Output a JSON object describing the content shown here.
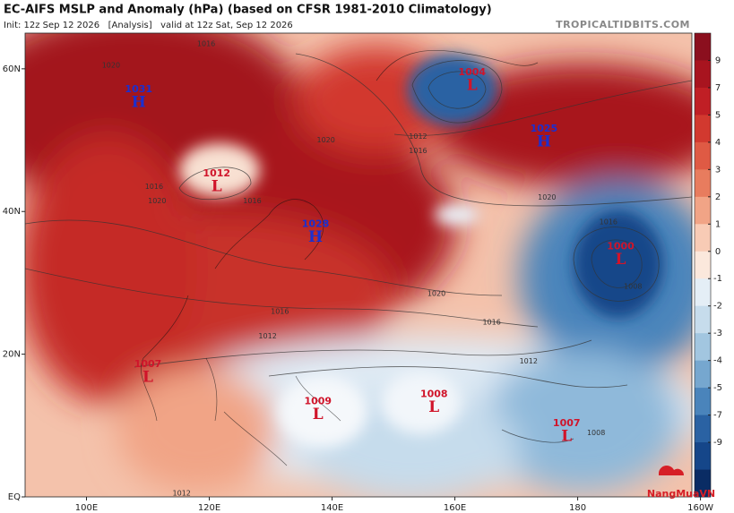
{
  "header": {
    "title": "EC-AIFS MSLP and Anomaly (hPa) (based on CFSR 1981-2010 Climatology)",
    "init": "Init: 12z Sep 12 2026   [Analysis]   valid at 12z Sat, Sep 12 2026",
    "source": "TROPICALTIDBITS.COM"
  },
  "axes": {
    "lon_labels": [
      {
        "value": 100,
        "label": "100E"
      },
      {
        "value": 120,
        "label": "120E"
      },
      {
        "value": 140,
        "label": "140E"
      },
      {
        "value": 160,
        "label": "160E"
      },
      {
        "value": 180,
        "label": "180"
      },
      {
        "value": 200,
        "label": "160W"
      }
    ],
    "lat_labels": [
      {
        "value": 0,
        "label": "EQ"
      },
      {
        "value": 20,
        "label": "20N"
      },
      {
        "value": 40,
        "label": "40N"
      },
      {
        "value": 60,
        "label": "60N"
      }
    ]
  },
  "colorbar": {
    "ticks": [
      9,
      7,
      5,
      4,
      3,
      2,
      1,
      0,
      -1,
      -2,
      -3,
      -4,
      -5,
      -7,
      -9
    ],
    "colors": [
      "#8b0f1e",
      "#a8141f",
      "#c01f25",
      "#d2392f",
      "#df5a44",
      "#e87c5e",
      "#f1a486",
      "#f8cbb5",
      "#fbe8dc",
      "#e4eef6",
      "#c6dcec",
      "#a2c6e0",
      "#76a7cf",
      "#4a84bb",
      "#2a62a3",
      "#154689",
      "#0a2c64"
    ]
  },
  "centers": [
    {
      "type": "H",
      "pressure": "1031",
      "lon": 108.5,
      "lat": 55.2
    },
    {
      "type": "L",
      "pressure": "1012",
      "lon": 121.2,
      "lat": 43.4
    },
    {
      "type": "H",
      "pressure": "1028",
      "lon": 137.3,
      "lat": 36.3
    },
    {
      "type": "L",
      "pressure": "1004",
      "lon": 162.8,
      "lat": 57.6
    },
    {
      "type": "H",
      "pressure": "1025",
      "lon": 174.5,
      "lat": 49.7
    },
    {
      "type": "L",
      "pressure": "1000",
      "lon": 187.0,
      "lat": 33.2
    },
    {
      "type": "L",
      "pressure": "1007",
      "lon": 110.0,
      "lat": 16.7
    },
    {
      "type": "L",
      "pressure": "1009",
      "lon": 137.7,
      "lat": 11.5
    },
    {
      "type": "L",
      "pressure": "1008",
      "lon": 156.6,
      "lat": 12.5
    },
    {
      "type": "L",
      "pressure": "1007",
      "lon": 178.2,
      "lat": 8.4
    }
  ],
  "contour_labels": [
    {
      "text": "1016",
      "lon": 119.5,
      "lat": 63.5
    },
    {
      "text": "1020",
      "lon": 104.0,
      "lat": 60.5
    },
    {
      "text": "1020",
      "lon": 139.0,
      "lat": 50.0
    },
    {
      "text": "1016",
      "lon": 127.0,
      "lat": 41.5
    },
    {
      "text": "1016",
      "lon": 111.0,
      "lat": 43.5
    },
    {
      "text": "1020",
      "lon": 111.5,
      "lat": 41.5
    },
    {
      "text": "1012",
      "lon": 154.0,
      "lat": 50.5
    },
    {
      "text": "1016",
      "lon": 154.0,
      "lat": 48.5
    },
    {
      "text": "1020",
      "lon": 157.0,
      "lat": 28.5
    },
    {
      "text": "1016",
      "lon": 131.5,
      "lat": 26.0
    },
    {
      "text": "1016",
      "lon": 166.0,
      "lat": 24.5
    },
    {
      "text": "1012",
      "lon": 129.5,
      "lat": 22.5
    },
    {
      "text": "1012",
      "lon": 172.0,
      "lat": 19.0
    },
    {
      "text": "1016",
      "lon": 185.0,
      "lat": 38.5
    },
    {
      "text": "1008",
      "lon": 189.0,
      "lat": 29.5
    },
    {
      "text": "1020",
      "lon": 175.0,
      "lat": 42.0
    },
    {
      "text": "1012",
      "lon": 115.5,
      "lat": 0.5
    },
    {
      "text": "1008",
      "lon": 183.0,
      "lat": 9.0
    }
  ],
  "logo": "NangMuaVN"
}
